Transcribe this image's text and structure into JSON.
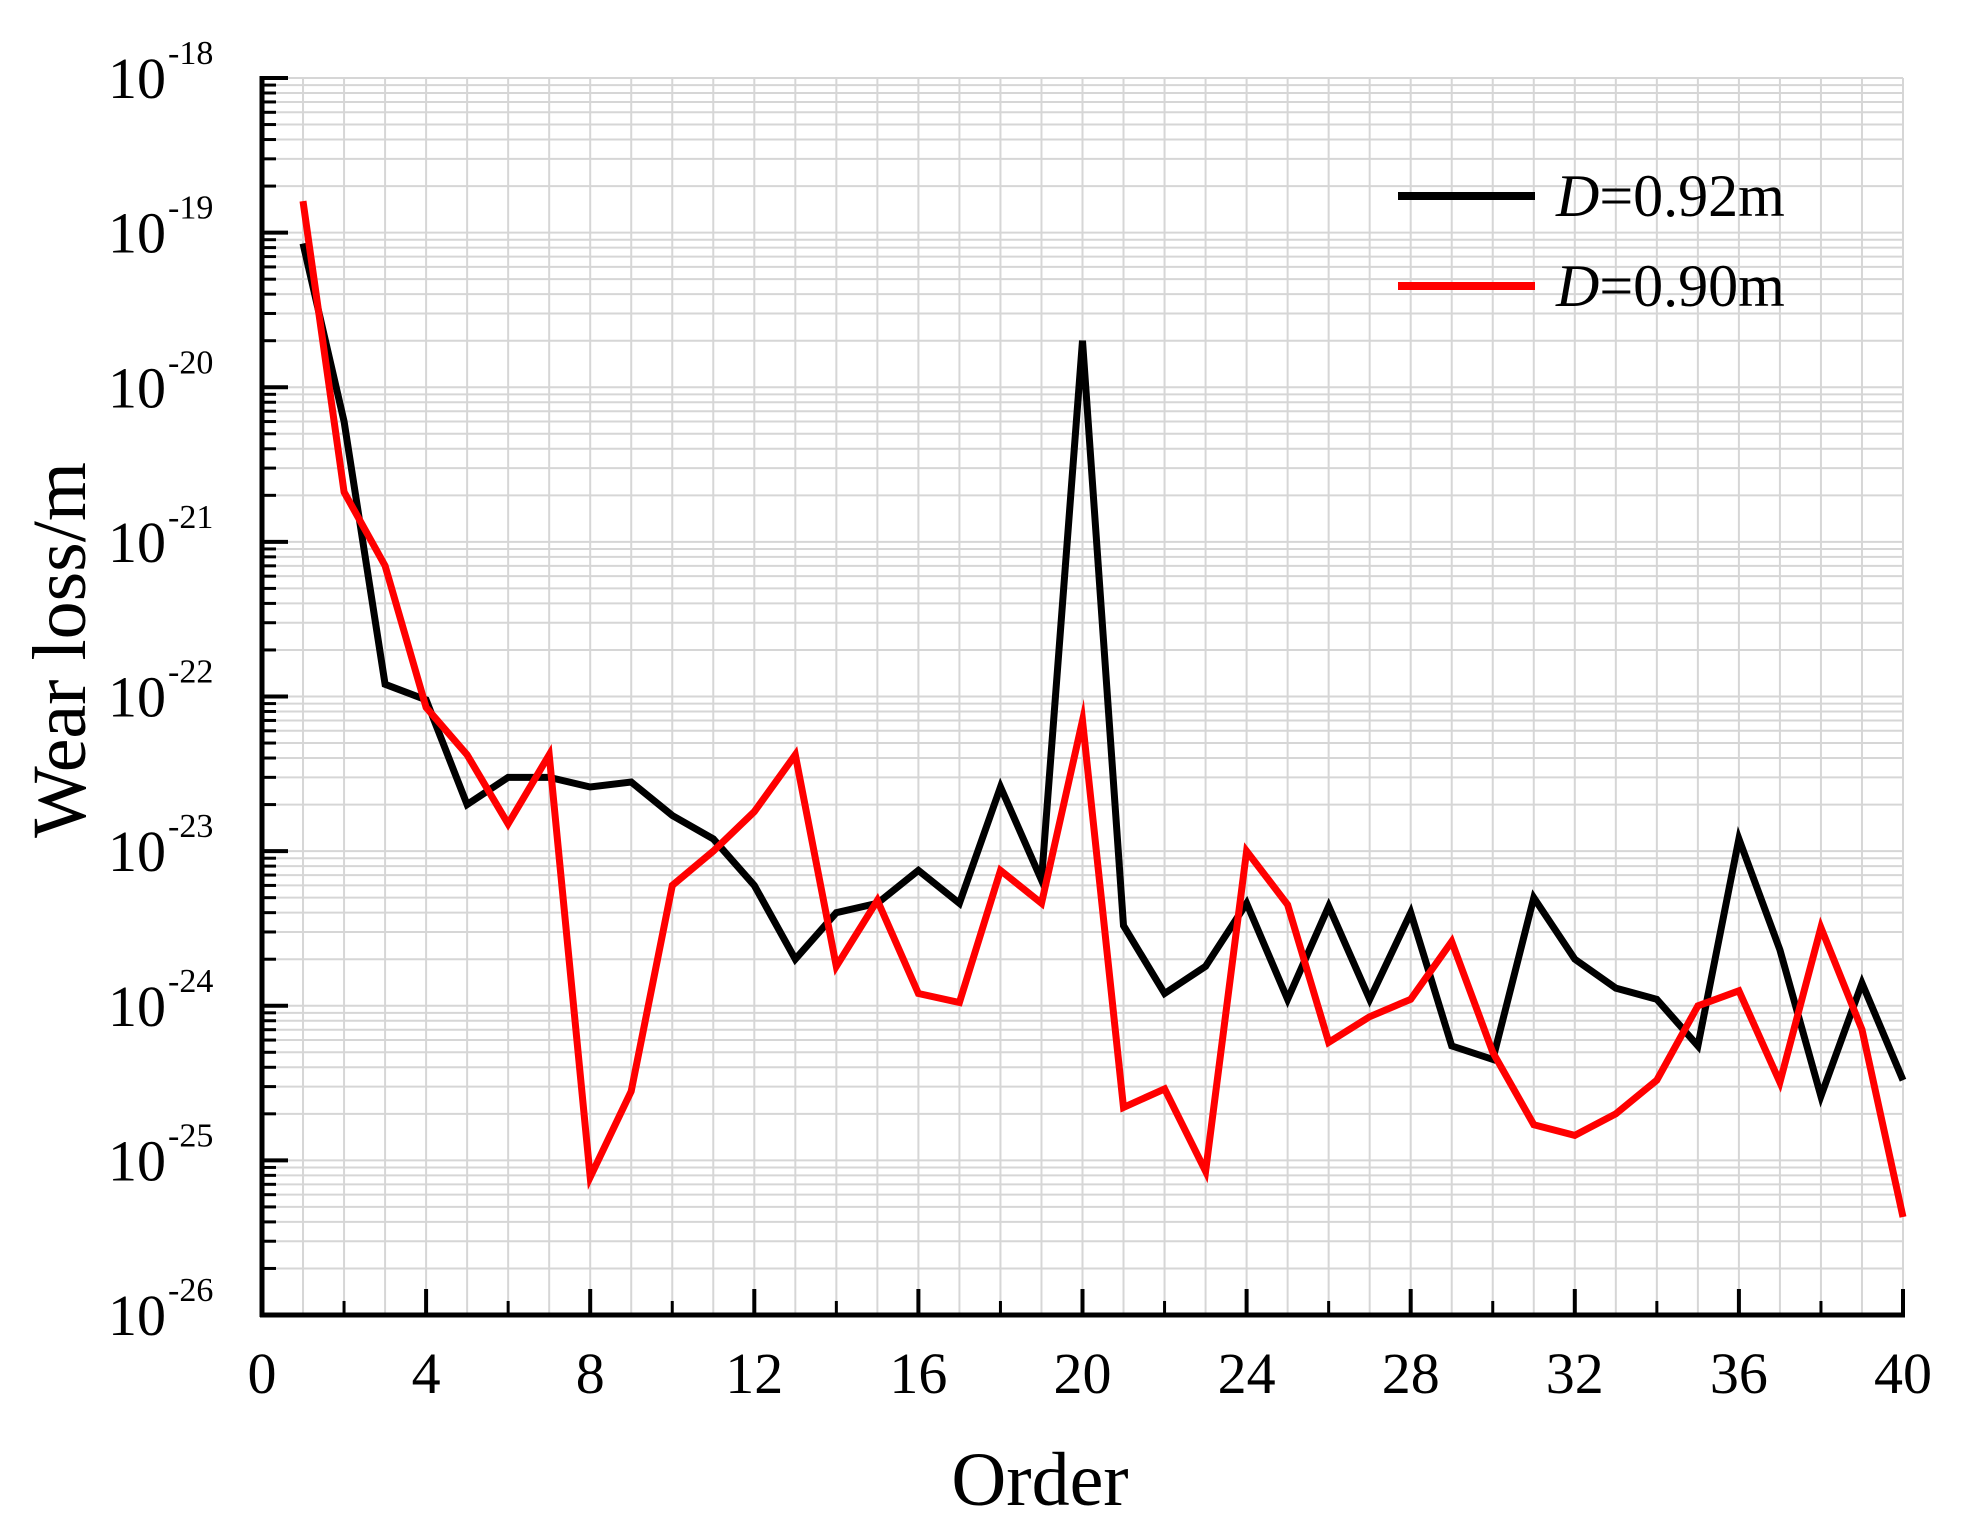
{
  "chart_data": {
    "type": "line",
    "xlabel": "Order",
    "ylabel": "Wear loss/m",
    "xlim": [
      0,
      40
    ],
    "x_ticks": [
      0,
      4,
      8,
      12,
      16,
      20,
      24,
      28,
      32,
      36,
      40
    ],
    "yscale": "log",
    "ylim": [
      1e-26,
      1e-18
    ],
    "y_tick_labels": [
      {
        "base": "10",
        "exp": "-26",
        "value": 1e-26
      },
      {
        "base": "10",
        "exp": "-25",
        "value": 1e-25
      },
      {
        "base": "10",
        "exp": "-24",
        "value": 1e-24
      },
      {
        "base": "10",
        "exp": "-23",
        "value": 1e-23
      },
      {
        "base": "10",
        "exp": "-22",
        "value": 1e-22
      },
      {
        "base": "10",
        "exp": "-21",
        "value": 1e-21
      },
      {
        "base": "10",
        "exp": "-20",
        "value": 1e-20
      },
      {
        "base": "10",
        "exp": "-19",
        "value": 1e-19
      },
      {
        "base": "10",
        "exp": "-18",
        "value": 1e-18
      }
    ],
    "grid": true,
    "legend_position": "top-right",
    "x": [
      1,
      2,
      3,
      4,
      5,
      6,
      7,
      8,
      9,
      10,
      11,
      12,
      13,
      14,
      15,
      16,
      17,
      18,
      19,
      20,
      21,
      22,
      23,
      24,
      25,
      26,
      27,
      28,
      29,
      30,
      31,
      32,
      33,
      34,
      35,
      36,
      37,
      38,
      39,
      40
    ],
    "series": [
      {
        "name_italic": "D",
        "name_rest": "=0.92m",
        "color": "#000000",
        "values": [
          8.5e-20,
          6e-21,
          1.2e-22,
          9.5e-23,
          2e-23,
          3e-23,
          3e-23,
          2.6e-23,
          2.8e-23,
          1.7e-23,
          1.2e-23,
          6e-24,
          2e-24,
          4e-24,
          4.6e-24,
          7.5e-24,
          4.6e-24,
          2.6e-23,
          6.5e-24,
          2e-20,
          3.3e-24,
          1.2e-24,
          1.8e-24,
          4.6e-24,
          1.1e-24,
          4.4e-24,
          1.1e-24,
          4e-24,
          5.5e-25,
          4.5e-25,
          5e-24,
          2e-24,
          1.3e-24,
          1.1e-24,
          5.5e-25,
          1.2e-23,
          2.3e-24,
          2.6e-25,
          1.4e-24,
          3.3e-25
        ]
      },
      {
        "name_italic": "D",
        "name_rest": "=0.90m",
        "color": "#ff0000",
        "values": [
          1.6e-19,
          2.1e-21,
          7e-22,
          8.5e-23,
          4.2e-23,
          1.5e-23,
          4.2e-23,
          7.8e-26,
          2.8e-25,
          6e-24,
          1e-23,
          1.8e-23,
          4.2e-23,
          1.8e-24,
          4.8e-24,
          1.2e-24,
          1.05e-24,
          7.5e-24,
          4.6e-24,
          7e-23,
          2.2e-25,
          2.9e-25,
          8.5e-26,
          1e-23,
          4.5e-24,
          5.8e-25,
          8.5e-25,
          1.1e-24,
          2.6e-24,
          5e-25,
          1.7e-25,
          1.45e-25,
          2e-25,
          3.3e-25,
          1e-24,
          1.25e-24,
          3.2e-25,
          3.2e-24,
          7e-25,
          4.3e-26
        ]
      }
    ]
  }
}
